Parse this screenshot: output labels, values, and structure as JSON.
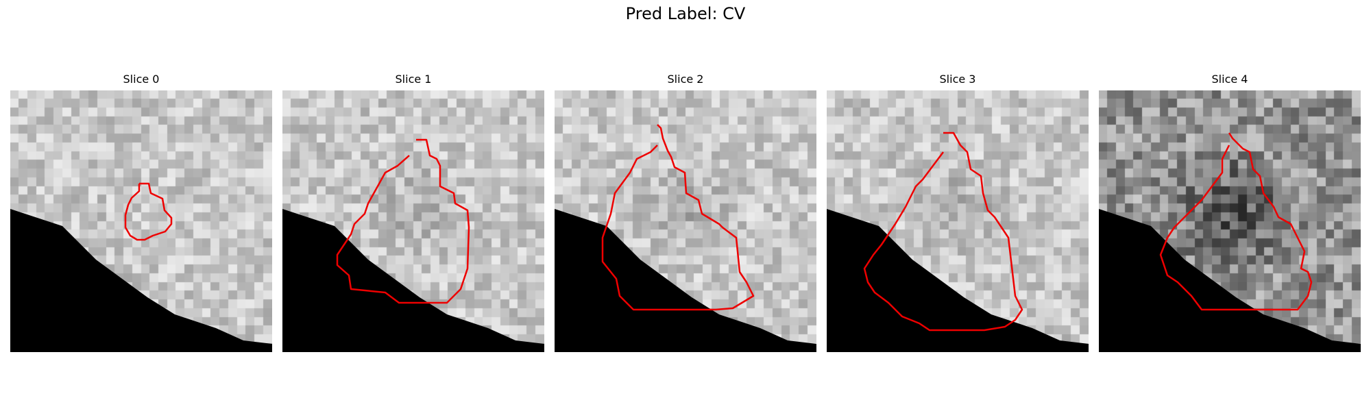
{
  "figure": {
    "title": "Pred Label: CV",
    "contour_color": "#ee0000",
    "panels": [
      {
        "title": "Slice 0",
        "shade": "light"
      },
      {
        "title": "Slice 1",
        "shade": "light"
      },
      {
        "title": "Slice 2",
        "shade": "light"
      },
      {
        "title": "Slice 3",
        "shade": "light"
      },
      {
        "title": "Slice 4",
        "shade": "dark"
      }
    ]
  }
}
